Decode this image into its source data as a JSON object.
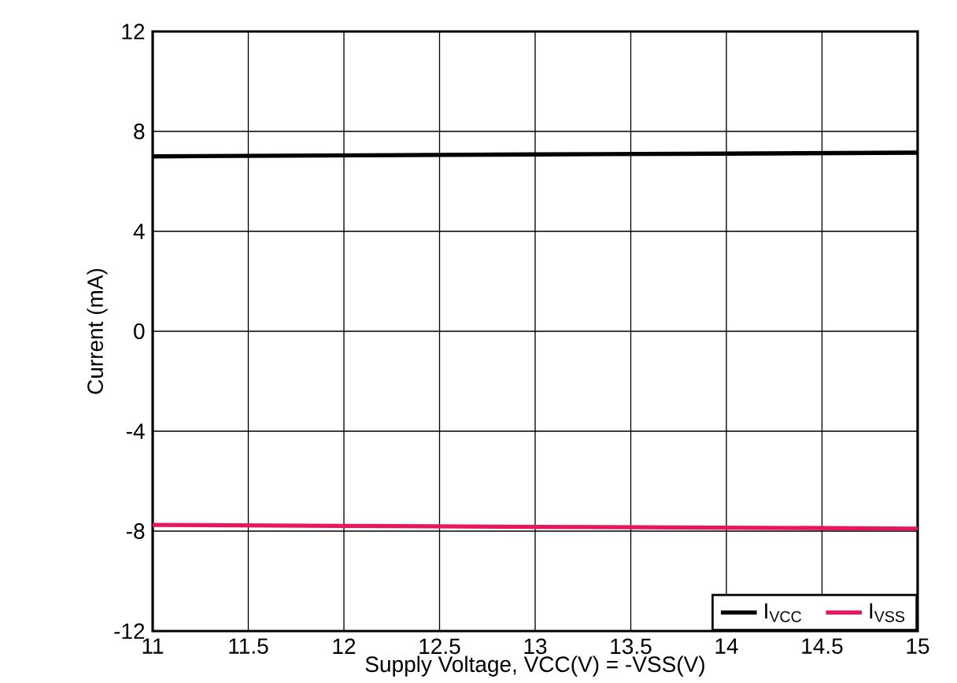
{
  "chart_data": {
    "type": "line",
    "xlabel": "Supply Voltage, VCC(V) = -VSS(V)",
    "ylabel": "Current (mA)",
    "x": [
      11,
      12,
      13,
      14,
      15
    ],
    "series": [
      {
        "name": "I$_{VCC}$",
        "color": "#000000",
        "values": [
          7.0,
          7.04,
          7.08,
          7.11,
          7.15
        ]
      },
      {
        "name": "I$_{VSS}$",
        "color": "#e8175d",
        "values": [
          -7.75,
          -7.79,
          -7.83,
          -7.86,
          -7.9
        ]
      }
    ],
    "xlim": [
      11,
      15
    ],
    "ylim": [
      -12,
      12
    ],
    "xticks": [
      11,
      11.5,
      12,
      12.5,
      13,
      13.5,
      14,
      14.5,
      15
    ],
    "yticks": [
      -12,
      -8,
      -4,
      0,
      4,
      8,
      12
    ],
    "grid": true,
    "legend": "bottom right",
    "marker": "none",
    "line_style": "solid"
  }
}
